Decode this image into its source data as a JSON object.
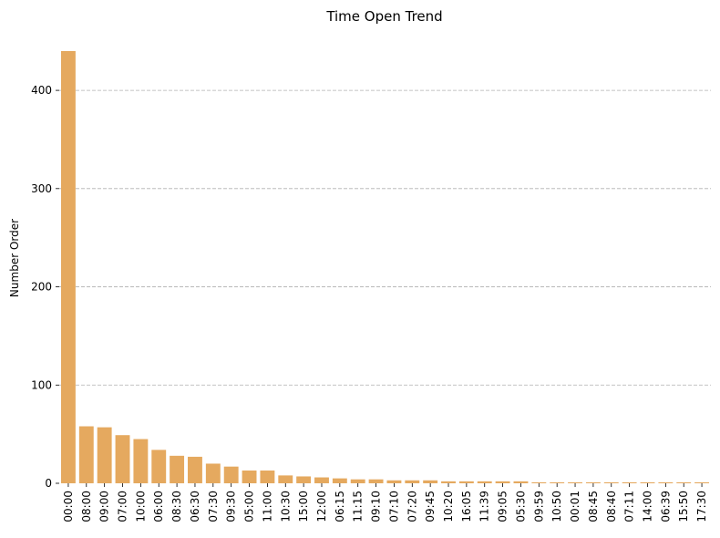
{
  "chart_data": {
    "type": "bar",
    "title": "Time Open Trend",
    "xlabel": "",
    "ylabel": "Number Order",
    "ylim": [
      0,
      440
    ],
    "yticks": [
      0,
      100,
      200,
      300,
      400
    ],
    "grid": "y-dashed",
    "bar_color": "#e5a95f",
    "categories": [
      "00:00",
      "08:00",
      "09:00",
      "07:00",
      "10:00",
      "06:00",
      "08:30",
      "06:30",
      "07:30",
      "09:30",
      "05:00",
      "11:00",
      "10:30",
      "15:00",
      "12:00",
      "06:15",
      "11:15",
      "09:10",
      "07:10",
      "07:20",
      "09:45",
      "10:20",
      "16:05",
      "11:39",
      "09:05",
      "05:30",
      "09:59",
      "10:50",
      "00:01",
      "08:45",
      "08:40",
      "07:11",
      "14:00",
      "06:39",
      "15:50",
      "17:30"
    ],
    "values": [
      440,
      58,
      57,
      49,
      45,
      34,
      28,
      27,
      20,
      17,
      13,
      13,
      8,
      7,
      6,
      5,
      4,
      4,
      3,
      3,
      3,
      2,
      2,
      2,
      2,
      2,
      1,
      1,
      1,
      1,
      1,
      1,
      1,
      1,
      1,
      1
    ]
  }
}
